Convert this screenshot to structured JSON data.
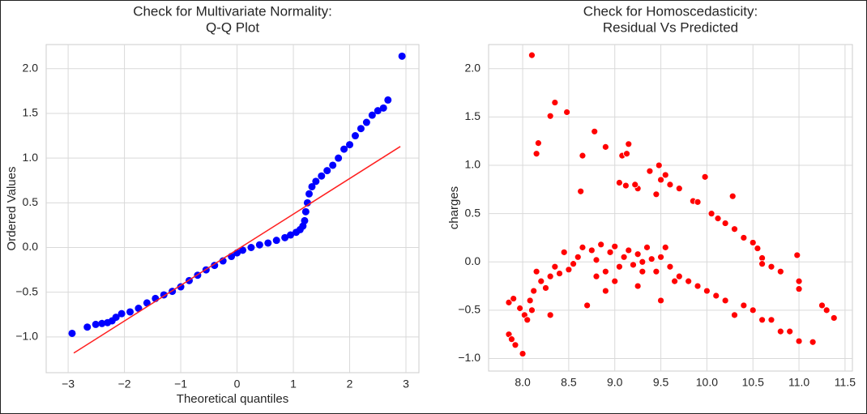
{
  "chart_data": [
    {
      "type": "scatter",
      "title": [
        "Check for Multivariate Normality:",
        "Q-Q Plot"
      ],
      "xlabel": "Theoretical quantiles",
      "ylabel": "Ordered Values",
      "color": "#0000ff",
      "x": [
        -2.93,
        -2.66,
        -2.51,
        -2.4,
        -2.3,
        -2.22,
        -2.15,
        -2.05,
        -1.9,
        -1.75,
        -1.6,
        -1.45,
        -1.3,
        -1.15,
        -1.0,
        -0.85,
        -0.7,
        -0.55,
        -0.4,
        -0.25,
        -0.1,
        0.0,
        0.1,
        0.25,
        0.4,
        0.55,
        0.7,
        0.85,
        0.95,
        1.05,
        1.12,
        1.17,
        1.2,
        1.22,
        1.25,
        1.28,
        1.33,
        1.4,
        1.5,
        1.6,
        1.7,
        1.8,
        1.9,
        2.0,
        2.1,
        2.2,
        2.3,
        2.4,
        2.5,
        2.6,
        2.68,
        2.93
      ],
      "values": [
        -0.96,
        -0.89,
        -0.86,
        -0.85,
        -0.84,
        -0.82,
        -0.78,
        -0.74,
        -0.72,
        -0.68,
        -0.62,
        -0.57,
        -0.53,
        -0.49,
        -0.44,
        -0.37,
        -0.31,
        -0.25,
        -0.2,
        -0.15,
        -0.1,
        -0.06,
        -0.03,
        0.0,
        0.03,
        0.05,
        0.08,
        0.11,
        0.14,
        0.17,
        0.2,
        0.24,
        0.3,
        0.4,
        0.5,
        0.6,
        0.68,
        0.74,
        0.8,
        0.86,
        0.92,
        1.0,
        1.1,
        1.15,
        1.25,
        1.33,
        1.4,
        1.48,
        1.53,
        1.56,
        1.65,
        2.14
      ],
      "fit_line": {
        "x": [
          -2.9,
          2.9
        ],
        "y": [
          -1.18,
          1.13
        ],
        "color": "#ff2020"
      },
      "xlim": [
        -3.39,
        3.23
      ],
      "ylim": [
        -1.4,
        2.27
      ],
      "xticks": [
        {
          "value": -3,
          "label": "−3"
        },
        {
          "value": -2,
          "label": "−2"
        },
        {
          "value": -1,
          "label": "−1"
        },
        0,
        1,
        2,
        3
      ],
      "yticks": [
        {
          "value": -1,
          "label": "−1.0"
        },
        {
          "value": -0.5,
          "label": "−0.5"
        },
        {
          "value": 0,
          "label": "0.0"
        },
        0.5,
        {
          "value": 1,
          "label": "1.0"
        },
        1.5,
        {
          "value": 2,
          "label": "2.0"
        }
      ],
      "grid": true
    },
    {
      "type": "scatter",
      "title": [
        "Check for Homoscedasticity:",
        "Residual Vs Predicted"
      ],
      "ylabel": "charges",
      "color": "#ff0000",
      "x": [
        8.1,
        8.3,
        8.35,
        8.48,
        8.17,
        8.15,
        8.65,
        8.78,
        8.9,
        9.08,
        9.15,
        9.13,
        9.05,
        9.12,
        9.25,
        9.22,
        9.38,
        9.48,
        9.5,
        9.55,
        9.6,
        9.7,
        9.85,
        9.9,
        9.98,
        10.05,
        10.12,
        10.2,
        10.28,
        10.3,
        10.4,
        10.5,
        10.55,
        10.6,
        10.7,
        10.8,
        10.98,
        11.0,
        8.63,
        9.45,
        10.6,
        11.0,
        7.85,
        7.88,
        7.92,
        7.97,
        7.85,
        7.9,
        8.0,
        8.02,
        8.05,
        8.08,
        8.12,
        8.15,
        8.2,
        8.25,
        8.3,
        8.35,
        8.4,
        8.45,
        8.5,
        8.55,
        8.6,
        8.65,
        8.7,
        8.75,
        8.8,
        8.85,
        8.9,
        8.95,
        9.0,
        9.05,
        9.1,
        9.15,
        9.2,
        9.25,
        9.3,
        9.35,
        9.4,
        9.45,
        9.5,
        9.55,
        9.6,
        9.65,
        9.7,
        9.8,
        9.9,
        10.0,
        10.1,
        10.2,
        10.3,
        10.4,
        10.5,
        10.6,
        10.7,
        10.8,
        10.9,
        11.0,
        11.15,
        11.25,
        11.3,
        11.38,
        9.25,
        9.0,
        8.8,
        9.5,
        8.3,
        8.1,
        8.9,
        9.3
      ],
      "values": [
        2.14,
        1.51,
        1.65,
        1.55,
        1.23,
        1.12,
        1.1,
        1.35,
        1.19,
        1.1,
        1.22,
        1.12,
        0.82,
        0.79,
        0.76,
        0.8,
        0.94,
        1.0,
        0.85,
        0.9,
        0.8,
        0.76,
        0.63,
        0.62,
        0.88,
        0.5,
        0.45,
        0.4,
        0.68,
        0.34,
        0.25,
        0.2,
        0.14,
        0.04,
        -0.05,
        -0.1,
        0.07,
        -0.2,
        0.73,
        0.7,
        -0.02,
        -0.28,
        -0.75,
        -0.8,
        -0.86,
        -0.48,
        -0.42,
        -0.38,
        -0.95,
        -0.55,
        -0.6,
        -0.4,
        -0.3,
        -0.1,
        -0.2,
        -0.27,
        -0.15,
        -0.05,
        -0.12,
        0.1,
        -0.08,
        -0.02,
        0.05,
        0.15,
        -0.45,
        0.12,
        0.02,
        0.18,
        -0.1,
        0.1,
        0.16,
        -0.05,
        0.05,
        0.12,
        -0.03,
        0.08,
        0.0,
        0.15,
        0.03,
        -0.1,
        0.05,
        0.15,
        -0.05,
        -0.2,
        -0.15,
        -0.2,
        -0.25,
        -0.3,
        -0.35,
        -0.4,
        -0.55,
        -0.45,
        -0.5,
        -0.6,
        -0.6,
        -0.72,
        -0.72,
        -0.82,
        -0.83,
        -0.45,
        -0.5,
        -0.58,
        -0.25,
        -0.2,
        -0.15,
        -0.4,
        -0.55,
        -0.5,
        -0.3,
        -0.1
      ],
      "xlim": [
        7.63,
        11.58
      ],
      "ylim": [
        -1.13,
        2.25
      ],
      "xticks": [
        {
          "value": 8,
          "label": "8.0"
        },
        8.5,
        {
          "value": 9,
          "label": "9.0"
        },
        9.5,
        {
          "value": 10,
          "label": "10.0"
        },
        10.5,
        {
          "value": 11,
          "label": "11.0"
        },
        11.5
      ],
      "yticks": [
        {
          "value": -1,
          "label": "−1.0"
        },
        {
          "value": -0.5,
          "label": "−0.5"
        },
        {
          "value": 0,
          "label": "0.0"
        },
        0.5,
        {
          "value": 1,
          "label": "1.0"
        },
        1.5,
        {
          "value": 2,
          "label": "2.0"
        }
      ],
      "grid": true
    }
  ]
}
